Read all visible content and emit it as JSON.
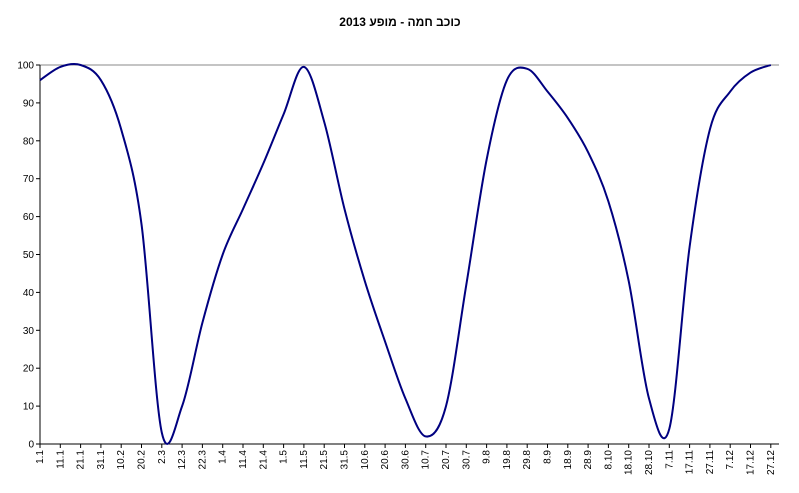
{
  "chart_data": {
    "type": "line",
    "title": "כוכב חמה - מופע 2013",
    "categories": [
      "1.1",
      "11.1",
      "21.1",
      "31.1",
      "10.2",
      "20.2",
      "2.3",
      "12.3",
      "22.3",
      "1.4",
      "11.4",
      "21.4",
      "1.5",
      "11.5",
      "21.5",
      "31.5",
      "10.6",
      "20.6",
      "30.6",
      "10.7",
      "20.7",
      "30.7",
      "9.8",
      "19.8",
      "29.8",
      "8.9",
      "18.9",
      "28.9",
      "8.10",
      "18.10",
      "28.10",
      "7.11",
      "17.11",
      "27.11",
      "7.12",
      "17.12",
      "27.12"
    ],
    "series": [
      {
        "color": "#000080",
        "values": [
          96,
          99.5,
          100,
          96,
          83,
          58,
          3,
          10,
          32,
          50,
          62,
          74,
          87,
          99.5,
          85,
          62,
          43,
          27,
          12,
          2,
          10,
          42,
          75,
          96,
          99,
          93,
          86,
          77,
          64,
          43,
          12,
          4,
          52,
          83,
          93,
          98,
          100
        ]
      }
    ],
    "ylim": [
      0,
      100
    ],
    "yticks": [
      0,
      10,
      20,
      30,
      40,
      50,
      60,
      70,
      80,
      90,
      100
    ],
    "grid": false
  }
}
